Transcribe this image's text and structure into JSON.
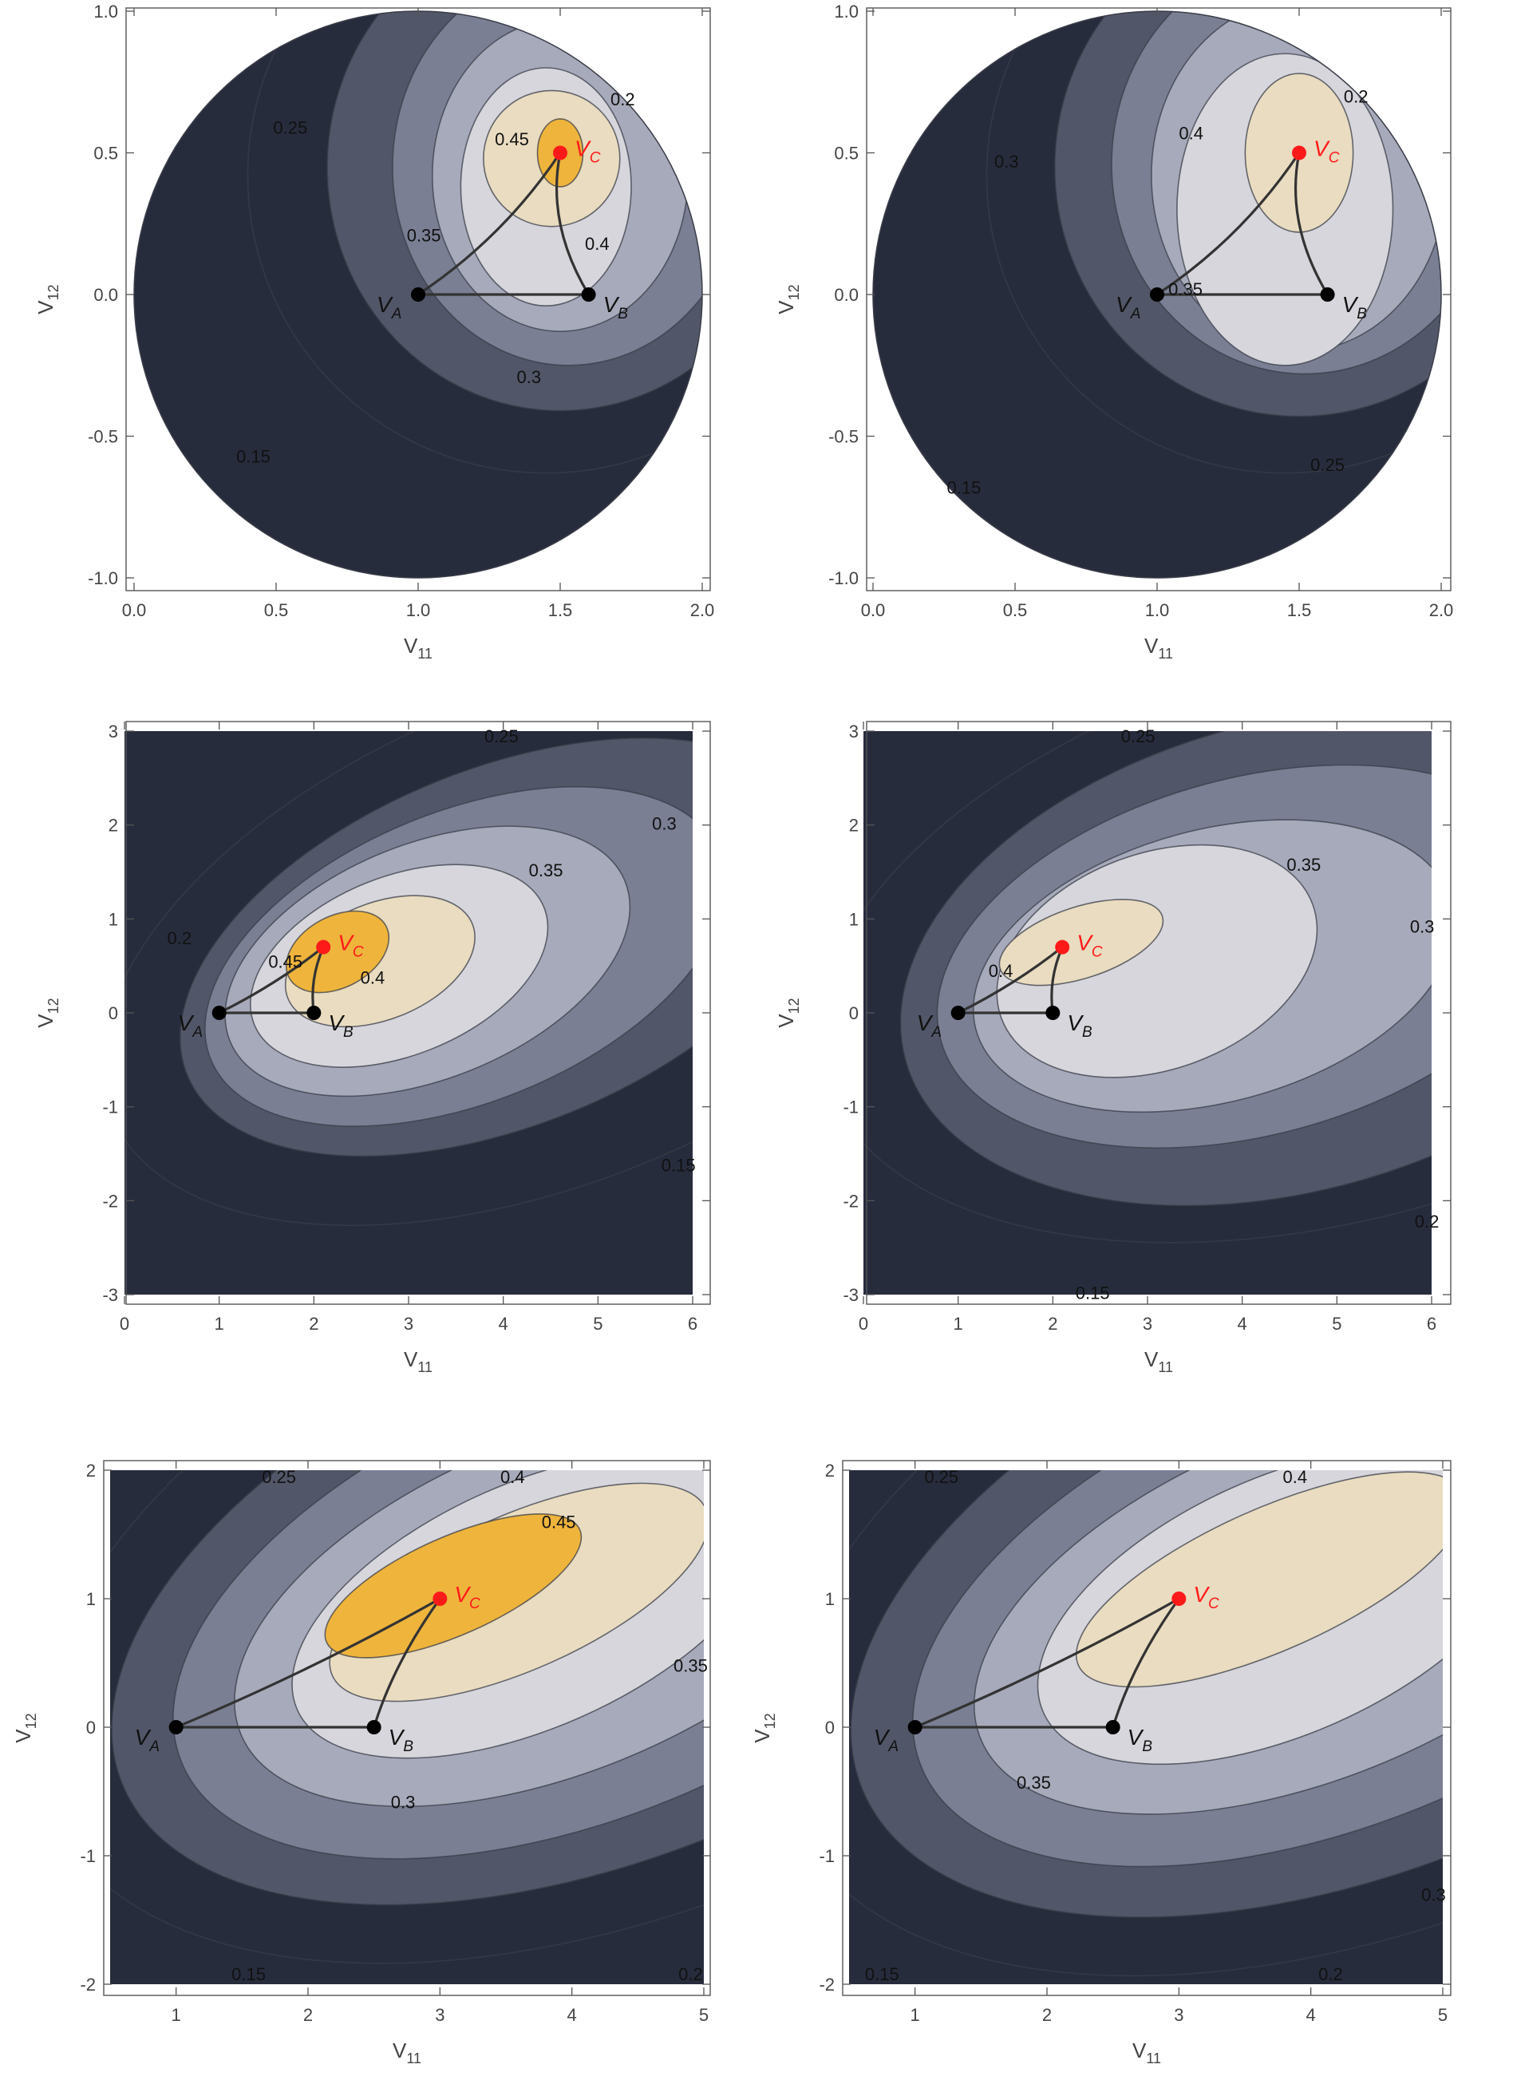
{
  "palette": {
    "bg_dark": "#272c3d",
    "bg_mid": "#8b90a5",
    "bg_light": "#d6d6dc",
    "cream": "#e9dcc0",
    "orange": "#eeb43c",
    "line": "#3a3d48",
    "red_point": "#ff1a1a",
    "black_point": "#000000"
  },
  "chart_data": [
    {
      "type": "contour",
      "panel": "top-left",
      "xlabel": "V11",
      "ylabel": "V12",
      "xlim": [
        0,
        2
      ],
      "ylim": [
        -1,
        1
      ],
      "xticks": [
        "0.0",
        "0.5",
        "1.0",
        "1.5",
        "2.0"
      ],
      "yticks": [
        "-1.0",
        "-0.5",
        "0.0",
        "0.5",
        "1.0"
      ],
      "domain": "disk",
      "levels": [
        0.15,
        0.2,
        0.25,
        0.3,
        0.35,
        0.4,
        0.45
      ],
      "contour_labels": [
        "0.15",
        "0.2",
        "0.25",
        "0.3",
        "0.35",
        "0.4",
        "0.45"
      ],
      "points": [
        {
          "name": "V_A",
          "x": 1.0,
          "y": 0.0
        },
        {
          "name": "V_B",
          "x": 1.6,
          "y": 0.0
        },
        {
          "name": "V_C",
          "x": 1.5,
          "y": 0.5
        }
      ]
    },
    {
      "type": "contour",
      "panel": "top-right",
      "xlabel": "V11",
      "ylabel": "V12",
      "xlim": [
        0,
        2
      ],
      "ylim": [
        -1,
        1
      ],
      "xticks": [
        "0.0",
        "0.5",
        "1.0",
        "1.5",
        "2.0"
      ],
      "yticks": [
        "-1.0",
        "-0.5",
        "0.0",
        "0.5",
        "1.0"
      ],
      "domain": "disk",
      "levels": [
        0.15,
        0.2,
        0.25,
        0.3,
        0.35,
        0.4
      ],
      "contour_labels": [
        "0.15",
        "0.2",
        "0.25",
        "0.3",
        "0.35",
        "0.4"
      ],
      "points": [
        {
          "name": "V_A",
          "x": 1.0,
          "y": 0.0
        },
        {
          "name": "V_B",
          "x": 1.6,
          "y": 0.0
        },
        {
          "name": "V_C",
          "x": 1.5,
          "y": 0.5
        }
      ]
    },
    {
      "type": "contour",
      "panel": "middle-left",
      "xlabel": "V11",
      "ylabel": "V12",
      "xlim": [
        0,
        6
      ],
      "ylim": [
        -3,
        3
      ],
      "xticks": [
        "0",
        "1",
        "2",
        "3",
        "4",
        "5",
        "6"
      ],
      "yticks": [
        "-3",
        "-2",
        "-1",
        "0",
        "1",
        "2",
        "3"
      ],
      "levels": [
        0.15,
        0.2,
        0.25,
        0.3,
        0.35,
        0.4,
        0.45
      ],
      "contour_labels": [
        "0.15",
        "0.2",
        "0.25",
        "0.3",
        "0.35",
        "0.4",
        "0.45"
      ],
      "points": [
        {
          "name": "V_A",
          "x": 1.0,
          "y": 0.0
        },
        {
          "name": "V_B",
          "x": 2.0,
          "y": 0.0
        },
        {
          "name": "V_C",
          "x": 2.1,
          "y": 0.7
        }
      ]
    },
    {
      "type": "contour",
      "panel": "middle-right",
      "xlabel": "V11",
      "ylabel": "V12",
      "xlim": [
        0,
        6
      ],
      "ylim": [
        -3,
        3
      ],
      "xticks": [
        "0",
        "1",
        "2",
        "3",
        "4",
        "5",
        "6"
      ],
      "yticks": [
        "-3",
        "-2",
        "-1",
        "0",
        "1",
        "2",
        "3"
      ],
      "levels": [
        0.15,
        0.2,
        0.25,
        0.3,
        0.35,
        0.4
      ],
      "contour_labels": [
        "0.15",
        "0.2",
        "0.25",
        "0.3",
        "0.35",
        "0.4"
      ],
      "points": [
        {
          "name": "V_A",
          "x": 1.0,
          "y": 0.0
        },
        {
          "name": "V_B",
          "x": 2.0,
          "y": 0.0
        },
        {
          "name": "V_C",
          "x": 2.1,
          "y": 0.7
        }
      ]
    },
    {
      "type": "contour",
      "panel": "bottom-left",
      "xlabel": "V11",
      "ylabel": "V12",
      "xlim": [
        0.5,
        5
      ],
      "ylim": [
        -2,
        2
      ],
      "xticks": [
        "1",
        "2",
        "3",
        "4",
        "5"
      ],
      "yticks": [
        "-2",
        "-1",
        "0",
        "1",
        "2"
      ],
      "levels": [
        0.15,
        0.2,
        0.25,
        0.3,
        0.35,
        0.4,
        0.45
      ],
      "contour_labels": [
        "0.15",
        "0.2",
        "0.25",
        "0.3",
        "0.35",
        "0.4",
        "0.45"
      ],
      "points": [
        {
          "name": "V_A",
          "x": 1.0,
          "y": 0.0
        },
        {
          "name": "V_B",
          "x": 2.5,
          "y": 0.0
        },
        {
          "name": "V_C",
          "x": 3.0,
          "y": 1.0
        }
      ]
    },
    {
      "type": "contour",
      "panel": "bottom-right",
      "xlabel": "V11",
      "ylabel": "V12",
      "xlim": [
        0.5,
        5
      ],
      "ylim": [
        -2,
        2
      ],
      "xticks": [
        "1",
        "2",
        "3",
        "4",
        "5"
      ],
      "yticks": [
        "-2",
        "-1",
        "0",
        "1",
        "2"
      ],
      "levels": [
        0.15,
        0.2,
        0.25,
        0.3,
        0.35,
        0.4
      ],
      "contour_labels": [
        "0.15",
        "0.2",
        "0.25",
        "0.3",
        "0.35",
        "0.4"
      ],
      "points": [
        {
          "name": "V_A",
          "x": 1.0,
          "y": 0.0
        },
        {
          "name": "V_B",
          "x": 2.5,
          "y": 0.0
        },
        {
          "name": "V_C",
          "x": 3.0,
          "y": 1.0
        }
      ]
    }
  ]
}
